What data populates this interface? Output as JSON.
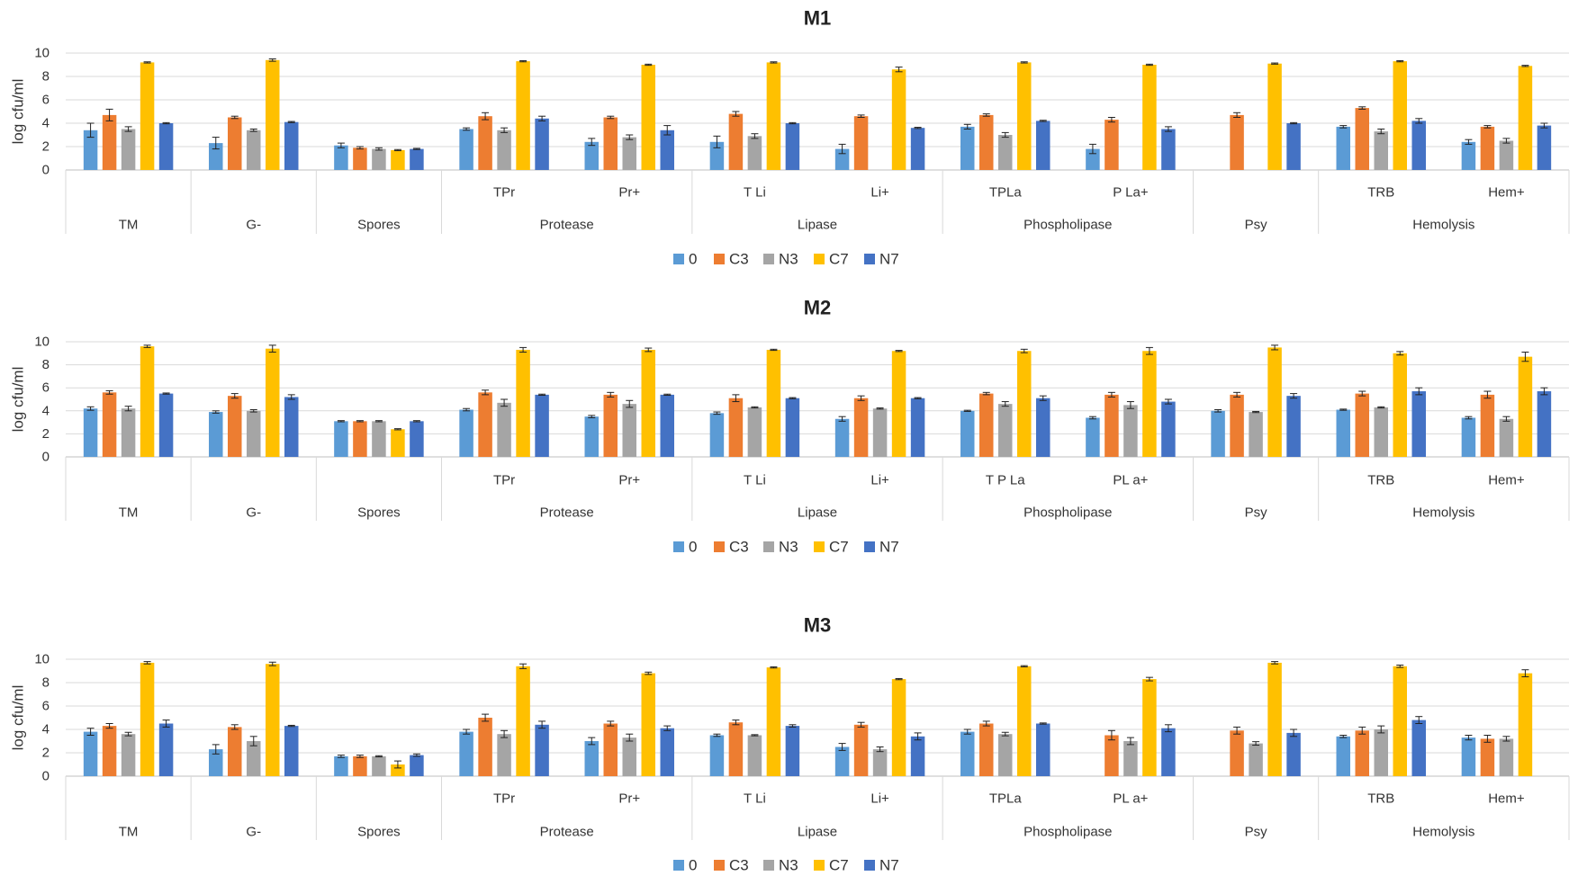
{
  "y_axis_label": "log cfu/ml",
  "colors": {
    "0": "#5b9bd5",
    "C3": "#ed7d31",
    "N3": "#a5a5a5",
    "C7": "#ffc000",
    "N7": "#4472c4"
  },
  "chart_data": [
    {
      "type": "bar",
      "title": "M1",
      "ylabel": "log cfu/ml",
      "ylim": [
        0,
        10
      ],
      "yticks": [
        "0",
        "2",
        "4",
        "6",
        "8",
        "10"
      ],
      "legend": [
        "0",
        "C3",
        "N3",
        "C7",
        "N7"
      ],
      "groups": [
        "TM",
        "G-",
        "Spores",
        "Protease",
        "Lipase",
        "Phospholipase",
        "Psy",
        "Hemolysis"
      ],
      "categories": [
        "",
        "",
        "",
        "TPr",
        "Pr+",
        "T Li",
        "Li+",
        "TPLa",
        "P La+",
        "",
        "TRB",
        "Hem+"
      ],
      "series": [
        {
          "name": "0",
          "values": [
            3.4,
            2.3,
            2.1,
            3.5,
            2.4,
            2.4,
            1.8,
            3.7,
            1.8,
            null,
            3.7,
            2.4
          ],
          "errors": [
            0.6,
            0.5,
            0.2,
            0.1,
            0.3,
            0.5,
            0.4,
            0.2,
            0.4,
            0,
            0.1,
            0.2
          ]
        },
        {
          "name": "C3",
          "values": [
            4.7,
            4.5,
            1.9,
            4.6,
            4.5,
            4.8,
            4.6,
            4.7,
            4.3,
            4.7,
            5.3,
            3.7
          ],
          "errors": [
            0.5,
            0.1,
            0.1,
            0.3,
            0.1,
            0.2,
            0.1,
            0.1,
            0.2,
            0.2,
            0.1,
            0.1
          ]
        },
        {
          "name": "N3",
          "values": [
            3.5,
            3.4,
            1.8,
            3.4,
            2.8,
            2.9,
            null,
            3.0,
            null,
            null,
            3.3,
            2.5
          ],
          "errors": [
            0.2,
            0.1,
            0.1,
            0.2,
            0.2,
            0.2,
            0,
            0.2,
            0,
            0,
            0.2,
            0.2
          ]
        },
        {
          "name": "C7",
          "values": [
            9.2,
            9.4,
            1.7,
            9.3,
            9.0,
            9.2,
            8.6,
            9.2,
            9.0,
            9.1,
            9.3,
            8.9
          ],
          "errors": [
            0.05,
            0.1,
            0.05,
            0.05,
            0.05,
            0.05,
            0.2,
            0.05,
            0.05,
            0.05,
            0.05,
            0.05
          ]
        },
        {
          "name": "N7",
          "values": [
            4.0,
            4.1,
            1.8,
            4.4,
            3.4,
            4.0,
            3.6,
            4.2,
            3.5,
            4.0,
            4.2,
            3.8
          ],
          "errors": [
            0.05,
            0.05,
            0.05,
            0.2,
            0.4,
            0.05,
            0.05,
            0.05,
            0.2,
            0.05,
            0.2,
            0.2
          ]
        }
      ]
    },
    {
      "type": "bar",
      "title": "M2",
      "ylabel": "log cfu/ml",
      "ylim": [
        0,
        10
      ],
      "yticks": [
        "0",
        "2",
        "4",
        "6",
        "8",
        "10"
      ],
      "legend": [
        "0",
        "C3",
        "N3",
        "C7",
        "N7"
      ],
      "groups": [
        "TM",
        "G-",
        "Spores",
        "Protease",
        "Lipase",
        "Phospholipase",
        "Psy",
        "Hemolysis"
      ],
      "categories": [
        "",
        "",
        "",
        "TPr",
        "Pr+",
        "T Li",
        "Li+",
        "T P La",
        "PL a+",
        "",
        "TRB",
        "Hem+"
      ],
      "series": [
        {
          "name": "0",
          "values": [
            4.2,
            3.9,
            3.1,
            4.1,
            3.5,
            3.8,
            3.3,
            4.0,
            3.4,
            4.0,
            4.1,
            3.4
          ],
          "errors": [
            0.15,
            0.1,
            0.05,
            0.1,
            0.1,
            0.1,
            0.2,
            0.05,
            0.1,
            0.1,
            0.05,
            0.1
          ]
        },
        {
          "name": "C3",
          "values": [
            5.6,
            5.3,
            3.1,
            5.6,
            5.4,
            5.1,
            5.1,
            5.5,
            5.4,
            5.4,
            5.5,
            5.4
          ],
          "errors": [
            0.15,
            0.2,
            0.05,
            0.2,
            0.2,
            0.3,
            0.2,
            0.1,
            0.2,
            0.2,
            0.2,
            0.3
          ]
        },
        {
          "name": "N3",
          "values": [
            4.2,
            4.0,
            3.1,
            4.7,
            4.6,
            4.3,
            4.2,
            4.6,
            4.5,
            3.9,
            4.3,
            3.3
          ],
          "errors": [
            0.2,
            0.1,
            0.05,
            0.3,
            0.3,
            0.05,
            0.05,
            0.2,
            0.3,
            0.05,
            0.05,
            0.2
          ]
        },
        {
          "name": "C7",
          "values": [
            9.6,
            9.4,
            2.4,
            9.3,
            9.3,
            9.3,
            9.2,
            9.2,
            9.2,
            9.5,
            9.0,
            8.7
          ],
          "errors": [
            0.1,
            0.3,
            0.05,
            0.2,
            0.15,
            0.05,
            0.05,
            0.15,
            0.3,
            0.2,
            0.15,
            0.4
          ]
        },
        {
          "name": "N7",
          "values": [
            5.5,
            5.2,
            3.1,
            5.4,
            5.4,
            5.1,
            5.1,
            5.1,
            4.8,
            5.3,
            5.7,
            5.7
          ],
          "errors": [
            0.05,
            0.2,
            0.05,
            0.05,
            0.05,
            0.05,
            0.05,
            0.2,
            0.2,
            0.2,
            0.3,
            0.3
          ]
        }
      ]
    },
    {
      "type": "bar",
      "title": "M3",
      "ylabel": "log cfu/ml",
      "ylim": [
        0,
        10
      ],
      "yticks": [
        "0",
        "2",
        "4",
        "6",
        "8",
        "10"
      ],
      "legend": [
        "0",
        "C3",
        "N3",
        "C7",
        "N7"
      ],
      "groups": [
        "TM",
        "G-",
        "Spores",
        "Protease",
        "Lipase",
        "Phospholipase",
        "Psy",
        "Hemolysis"
      ],
      "categories": [
        "",
        "",
        "",
        "TPr",
        "Pr+",
        "T Li",
        "Li+",
        "TPLa",
        "PL a+",
        "",
        "TRB",
        "Hem+"
      ],
      "series": [
        {
          "name": "0",
          "values": [
            3.8,
            2.3,
            1.7,
            3.8,
            3.0,
            3.5,
            2.5,
            3.8,
            null,
            null,
            3.4,
            3.3
          ],
          "errors": [
            0.3,
            0.4,
            0.1,
            0.2,
            0.3,
            0.1,
            0.3,
            0.2,
            0,
            0,
            0.1,
            0.2
          ]
        },
        {
          "name": "C3",
          "values": [
            4.3,
            4.2,
            1.7,
            5.0,
            4.5,
            4.6,
            4.4,
            4.5,
            3.5,
            3.9,
            3.9,
            3.2
          ],
          "errors": [
            0.2,
            0.2,
            0.1,
            0.3,
            0.2,
            0.2,
            0.2,
            0.2,
            0.4,
            0.3,
            0.3,
            0.3
          ]
        },
        {
          "name": "N3",
          "values": [
            3.6,
            3.0,
            1.7,
            3.6,
            3.3,
            3.5,
            2.3,
            3.6,
            3.0,
            2.8,
            4.0,
            3.2
          ],
          "errors": [
            0.15,
            0.4,
            0.05,
            0.3,
            0.3,
            0.05,
            0.2,
            0.15,
            0.3,
            0.15,
            0.3,
            0.2
          ]
        },
        {
          "name": "C7",
          "values": [
            9.7,
            9.6,
            1.0,
            9.4,
            8.8,
            9.3,
            8.3,
            9.4,
            8.3,
            9.7,
            9.4,
            8.8
          ],
          "errors": [
            0.1,
            0.15,
            0.3,
            0.2,
            0.1,
            0.05,
            0.05,
            0.05,
            0.15,
            0.1,
            0.1,
            0.3
          ]
        },
        {
          "name": "N7",
          "values": [
            4.5,
            4.3,
            1.8,
            4.4,
            4.1,
            4.3,
            3.4,
            4.5,
            4.1,
            3.7,
            4.8,
            null
          ],
          "errors": [
            0.3,
            0.05,
            0.1,
            0.3,
            0.2,
            0.1,
            0.3,
            0.05,
            0.3,
            0.3,
            0.3,
            0
          ]
        }
      ]
    }
  ]
}
